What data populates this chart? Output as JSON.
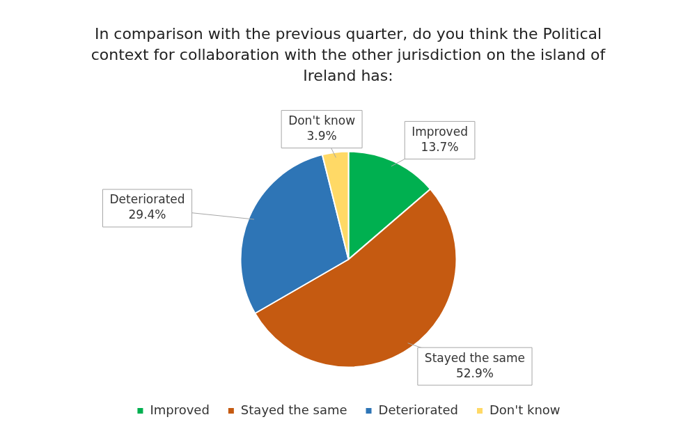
{
  "chart_data": {
    "type": "pie",
    "title": "In comparison with the previous quarter, do you think the Political context for collaboration with the other jurisdiction on the island of Ireland has:",
    "categories": [
      "Improved",
      "Stayed the same",
      "Deteriorated",
      "Don't know"
    ],
    "values": [
      13.7,
      52.9,
      29.4,
      3.9
    ],
    "colors": [
      "#00b050",
      "#c55a11",
      "#2e75b6",
      "#ffd966"
    ],
    "value_labels": [
      "13.7%",
      "52.9%",
      "29.4%",
      "3.9%"
    ],
    "legend": "bottom"
  }
}
